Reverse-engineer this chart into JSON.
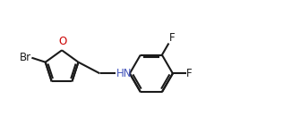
{
  "background": "#ffffff",
  "line_color": "#1a1a1a",
  "line_width": 1.5,
  "font_size": 8.5,
  "figsize": [
    3.35,
    1.48
  ],
  "dpi": 100,
  "xlim": [
    0.0,
    10.0
  ],
  "ylim": [
    0.3,
    3.5
  ]
}
